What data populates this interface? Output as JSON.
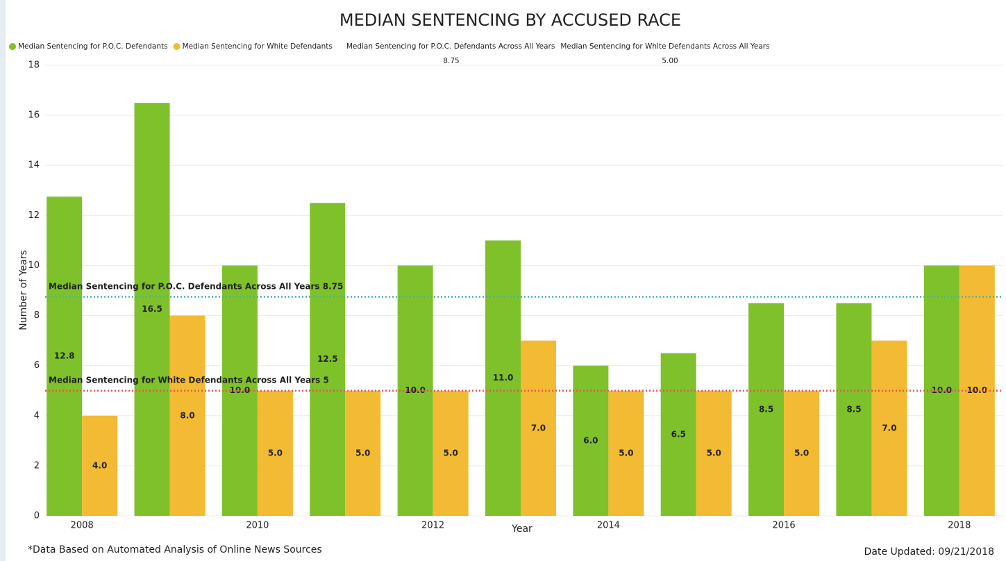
{
  "chart_data": {
    "type": "bar",
    "title": "MEDIAN SENTENCING BY ACCUSED RACE",
    "categories": [
      "2008",
      null,
      "2010",
      null,
      "2012",
      null,
      "2014",
      null,
      "2016",
      null,
      "2018"
    ],
    "series": [
      {
        "name": "Median Sentencing for P.O.C. Defendants",
        "color": "#7fc12a",
        "values": [
          12.75,
          16.5,
          10,
          12.5,
          10,
          11,
          6,
          6.5,
          8.5,
          8.5,
          10
        ],
        "value_labels": [
          "12.8",
          "16.5",
          "10.0",
          "12.5",
          "10.0",
          "11.0",
          "6.0",
          "6.5",
          "8.5",
          "8.5",
          "10.0"
        ]
      },
      {
        "name": "Median Sentencing for White Defendants",
        "color": "#f3bb33",
        "values": [
          4,
          8,
          5,
          5,
          5,
          7,
          5,
          5,
          5,
          7,
          10
        ],
        "value_labels": [
          "4.0",
          "8.0",
          "5.0",
          "5.0",
          "5.0",
          "7.0",
          "5.0",
          "5.0",
          "5.0",
          "7.0",
          "10.0"
        ]
      }
    ],
    "reference_lines": [
      {
        "name": "Median Sentencing for P.O.C. Defendants Across All Years",
        "color": "#3fb5a8",
        "value": 8.75,
        "value_label": "8.75"
      },
      {
        "name": "Median Sentencing for White Defendants Across All Years",
        "color": "#e9534f",
        "value": 5,
        "value_label": "5.00"
      }
    ],
    "y_label": "Number of Years",
    "x_label": "Year",
    "ylim": [
      0,
      18
    ],
    "yticks": [
      0,
      2,
      4,
      6,
      8,
      10,
      12,
      14,
      16,
      18
    ],
    "grid": true,
    "legend": "top-left",
    "footnote": "*Data Based on Automated Analysis of Online News Sources",
    "date_updated": "Date Updated: 09/21/2018"
  }
}
